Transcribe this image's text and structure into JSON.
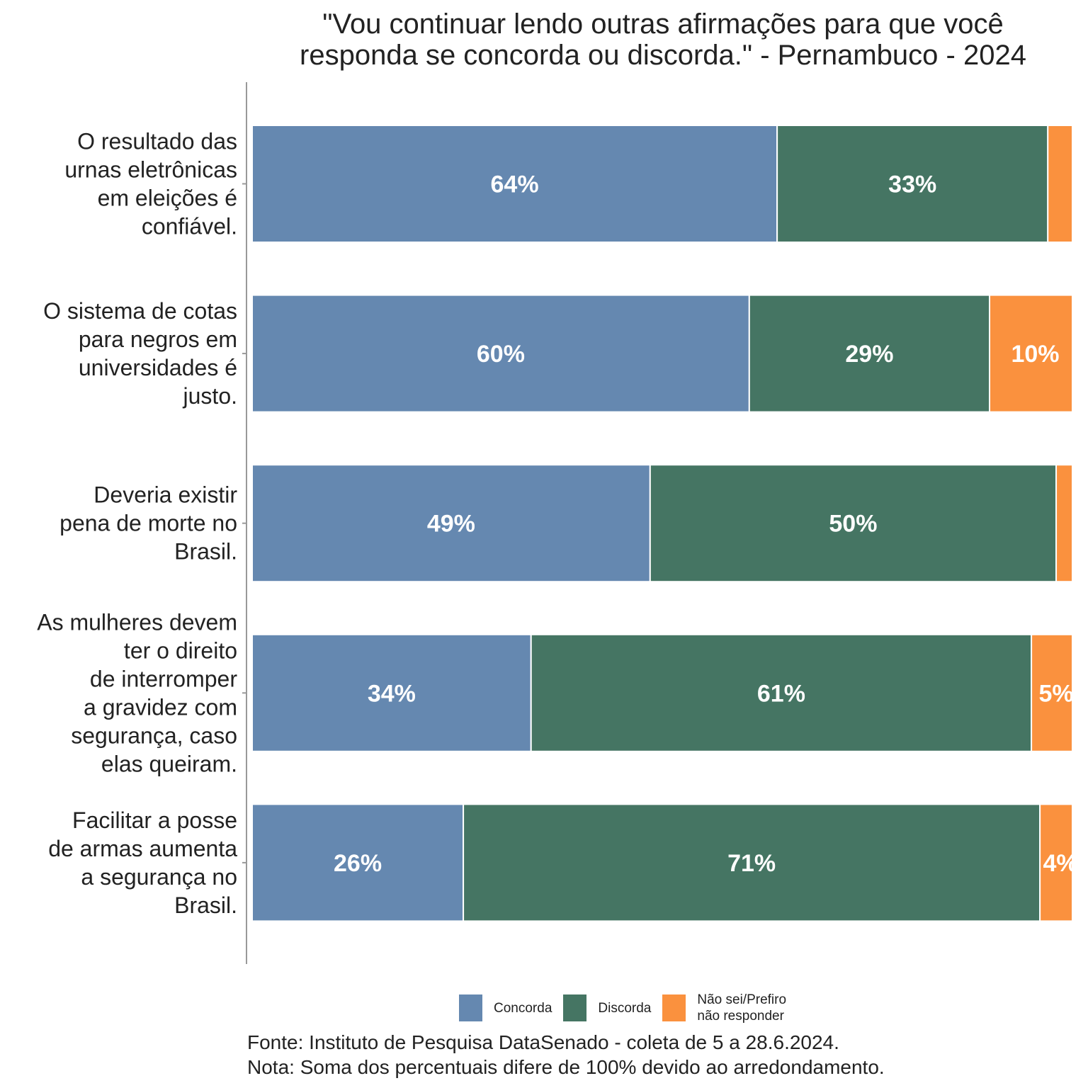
{
  "chart_data": {
    "type": "bar",
    "orientation": "horizontal",
    "stacked": true,
    "title": "\"Vou continuar lendo outras afirmações para que você responda se concorda ou discorda.\" - Pernambuco - 2024",
    "title_lines": [
      "\"Vou continuar lendo outras afirmações para que você",
      "responda se concorda ou discorda.\" - Pernambuco - 2024"
    ],
    "xlabel": "",
    "ylabel": "",
    "xlim": [
      0,
      100
    ],
    "grid": false,
    "legend_position": "bottom",
    "categories": [
      [
        "O resultado das",
        "urnas eletrônicas",
        "em eleições é",
        "confiável."
      ],
      [
        "O sistema de cotas",
        "para negros em",
        "universidades é",
        "justo."
      ],
      [
        "Deveria existir",
        "pena de morte no",
        "Brasil."
      ],
      [
        "As mulheres devem",
        "ter o direito",
        "de interromper",
        "a gravidez com",
        "segurança, caso",
        "elas queiram."
      ],
      [
        "Facilitar a posse",
        "de armas aumenta",
        "a segurança no",
        "Brasil."
      ]
    ],
    "series": [
      {
        "name": "Concorda",
        "color": "#6588B0",
        "values": [
          64,
          60,
          49,
          34,
          26
        ],
        "labels": [
          "64%",
          "60%",
          "49%",
          "34%",
          "26%"
        ]
      },
      {
        "name": "Discorda",
        "color": "#457563",
        "values": [
          33,
          29,
          50,
          61,
          71
        ],
        "labels": [
          "33%",
          "29%",
          "50%",
          "61%",
          "71%"
        ]
      },
      {
        "name": "Não sei/Prefiro não responder",
        "color": "#FA913E",
        "values": [
          3,
          10,
          2,
          5,
          4
        ],
        "labels": [
          "",
          "10%",
          "",
          "5%",
          "4%"
        ]
      }
    ],
    "legend": [
      {
        "lines": [
          "Concorda"
        ],
        "color": "#6588B0"
      },
      {
        "lines": [
          "Discorda"
        ],
        "color": "#457563"
      },
      {
        "lines": [
          "Não sei/Prefiro",
          "não responder"
        ],
        "color": "#FA913E"
      }
    ]
  },
  "footer": {
    "source": "Fonte: Instituto de Pesquisa DataSenado - coleta de 5 a 28.6.2024.",
    "note": "Nota: Soma dos percentuais difere de 100% devido ao arredondamento."
  }
}
